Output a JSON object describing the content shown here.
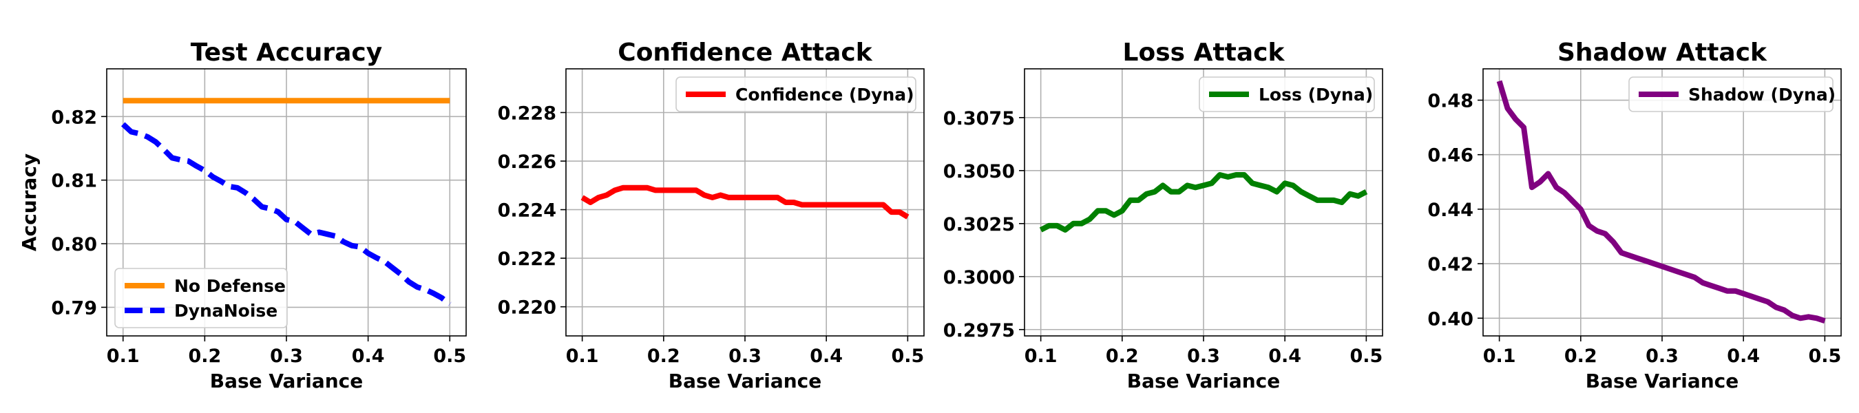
{
  "chart_data": [
    {
      "type": "line",
      "title": "Test Accuracy",
      "xlabel": "Base Variance",
      "ylabel": "Accuracy",
      "xlim": [
        0.08,
        0.52
      ],
      "ylim": [
        0.7855,
        0.8275
      ],
      "xticks": [
        0.1,
        0.2,
        0.3,
        0.4,
        0.5
      ],
      "xtick_labels": [
        "0.1",
        "0.2",
        "0.3",
        "0.4",
        "0.5"
      ],
      "yticks": [
        0.79,
        0.8,
        0.81,
        0.82
      ],
      "ytick_labels": [
        "0.79",
        "0.80",
        "0.81",
        "0.82"
      ],
      "grid": true,
      "legend_position": "lower-left",
      "x": [
        0.1,
        0.11,
        0.12,
        0.13,
        0.14,
        0.15,
        0.16,
        0.17,
        0.18,
        0.19,
        0.2,
        0.21,
        0.22,
        0.23,
        0.24,
        0.25,
        0.26,
        0.27,
        0.28,
        0.29,
        0.3,
        0.31,
        0.32,
        0.33,
        0.34,
        0.35,
        0.36,
        0.37,
        0.38,
        0.39,
        0.4,
        0.41,
        0.42,
        0.43,
        0.44,
        0.45,
        0.46,
        0.47,
        0.48,
        0.49,
        0.5
      ],
      "series": [
        {
          "name": "No Defense",
          "color": "#ff8c00",
          "dash": "solid",
          "values": [
            0.8225,
            0.8225,
            0.8225,
            0.8225,
            0.8225,
            0.8225,
            0.8225,
            0.8225,
            0.8225,
            0.8225,
            0.8225,
            0.8225,
            0.8225,
            0.8225,
            0.8225,
            0.8225,
            0.8225,
            0.8225,
            0.8225,
            0.8225,
            0.8225,
            0.8225,
            0.8225,
            0.8225,
            0.8225,
            0.8225,
            0.8225,
            0.8225,
            0.8225,
            0.8225,
            0.8225,
            0.8225,
            0.8225,
            0.8225,
            0.8225,
            0.8225,
            0.8225,
            0.8225,
            0.8225,
            0.8225,
            0.8225
          ]
        },
        {
          "name": "DynaNoise",
          "color": "#0000ff",
          "dash": "dashed",
          "values": [
            0.8188,
            0.8176,
            0.8173,
            0.8168,
            0.816,
            0.8148,
            0.8135,
            0.8132,
            0.813,
            0.8122,
            0.8115,
            0.8105,
            0.8098,
            0.809,
            0.8088,
            0.808,
            0.807,
            0.8058,
            0.8055,
            0.805,
            0.8038,
            0.8035,
            0.8025,
            0.8015,
            0.8018,
            0.8015,
            0.8012,
            0.8003,
            0.7997,
            0.7995,
            0.7985,
            0.7978,
            0.7972,
            0.7962,
            0.7952,
            0.794,
            0.7932,
            0.7928,
            0.7922,
            0.7915,
            0.7905
          ]
        }
      ]
    },
    {
      "type": "line",
      "title": "Confidence Attack",
      "xlabel": "Base Variance",
      "ylabel": "",
      "xlim": [
        0.08,
        0.52
      ],
      "ylim": [
        0.2188,
        0.2298
      ],
      "xticks": [
        0.1,
        0.2,
        0.3,
        0.4,
        0.5
      ],
      "xtick_labels": [
        "0.1",
        "0.2",
        "0.3",
        "0.4",
        "0.5"
      ],
      "yticks": [
        0.22,
        0.222,
        0.224,
        0.226,
        0.228
      ],
      "ytick_labels": [
        "0.220",
        "0.222",
        "0.224",
        "0.226",
        "0.228"
      ],
      "grid": true,
      "legend_position": "top-right",
      "x": [
        0.1,
        0.11,
        0.12,
        0.13,
        0.14,
        0.15,
        0.16,
        0.17,
        0.18,
        0.19,
        0.2,
        0.21,
        0.22,
        0.23,
        0.24,
        0.25,
        0.26,
        0.27,
        0.28,
        0.29,
        0.3,
        0.31,
        0.32,
        0.33,
        0.34,
        0.35,
        0.36,
        0.37,
        0.38,
        0.39,
        0.4,
        0.41,
        0.42,
        0.43,
        0.44,
        0.45,
        0.46,
        0.47,
        0.48,
        0.49,
        0.5
      ],
      "series": [
        {
          "name": "Confidence (Dyna)",
          "color": "#ff0000",
          "dash": "solid",
          "values": [
            0.2245,
            0.2243,
            0.2245,
            0.2246,
            0.2248,
            0.2249,
            0.2249,
            0.2249,
            0.2249,
            0.2248,
            0.2248,
            0.2248,
            0.2248,
            0.2248,
            0.2248,
            0.2246,
            0.2245,
            0.2246,
            0.2245,
            0.2245,
            0.2245,
            0.2245,
            0.2245,
            0.2245,
            0.2245,
            0.2243,
            0.2243,
            0.2242,
            0.2242,
            0.2242,
            0.2242,
            0.2242,
            0.2242,
            0.2242,
            0.2242,
            0.2242,
            0.2242,
            0.2242,
            0.2239,
            0.2239,
            0.2237
          ]
        }
      ]
    },
    {
      "type": "line",
      "title": "Loss Attack",
      "xlabel": "Base Variance",
      "ylabel": "",
      "xlim": [
        0.08,
        0.52
      ],
      "ylim": [
        0.2972,
        0.3098
      ],
      "xticks": [
        0.1,
        0.2,
        0.3,
        0.4,
        0.5
      ],
      "xtick_labels": [
        "0.1",
        "0.2",
        "0.3",
        "0.4",
        "0.5"
      ],
      "yticks": [
        0.2975,
        0.3,
        0.3025,
        0.305,
        0.3075
      ],
      "ytick_labels": [
        "0.2975",
        "0.3000",
        "0.3025",
        "0.3050",
        "0.3075"
      ],
      "grid": true,
      "legend_position": "top-right",
      "x": [
        0.1,
        0.11,
        0.12,
        0.13,
        0.14,
        0.15,
        0.16,
        0.17,
        0.18,
        0.19,
        0.2,
        0.21,
        0.22,
        0.23,
        0.24,
        0.25,
        0.26,
        0.27,
        0.28,
        0.29,
        0.3,
        0.31,
        0.32,
        0.33,
        0.34,
        0.35,
        0.36,
        0.37,
        0.38,
        0.39,
        0.4,
        0.41,
        0.42,
        0.43,
        0.44,
        0.45,
        0.46,
        0.47,
        0.48,
        0.49,
        0.5
      ],
      "series": [
        {
          "name": "Loss (Dyna)",
          "color": "#008000",
          "dash": "solid",
          "values": [
            0.3022,
            0.3024,
            0.3024,
            0.3022,
            0.3025,
            0.3025,
            0.3027,
            0.3031,
            0.3031,
            0.3029,
            0.3031,
            0.3036,
            0.3036,
            0.3039,
            0.304,
            0.3043,
            0.304,
            0.304,
            0.3043,
            0.3042,
            0.3043,
            0.3044,
            0.3048,
            0.3047,
            0.3048,
            0.3048,
            0.3044,
            0.3043,
            0.3042,
            0.304,
            0.3044,
            0.3043,
            0.304,
            0.3038,
            0.3036,
            0.3036,
            0.3036,
            0.3035,
            0.3039,
            0.3038,
            0.304
          ]
        }
      ]
    },
    {
      "type": "line",
      "title": "Shadow Attack",
      "xlabel": "Base Variance",
      "ylabel": "",
      "xlim": [
        0.08,
        0.52
      ],
      "ylim": [
        0.3935,
        0.4915
      ],
      "xticks": [
        0.1,
        0.2,
        0.3,
        0.4,
        0.5
      ],
      "xtick_labels": [
        "0.1",
        "0.2",
        "0.3",
        "0.4",
        "0.5"
      ],
      "yticks": [
        0.4,
        0.42,
        0.44,
        0.46,
        0.48
      ],
      "ytick_labels": [
        "0.40",
        "0.42",
        "0.44",
        "0.46",
        "0.48"
      ],
      "grid": true,
      "legend_position": "top-right",
      "x": [
        0.1,
        0.11,
        0.12,
        0.13,
        0.14,
        0.15,
        0.16,
        0.17,
        0.18,
        0.19,
        0.2,
        0.21,
        0.22,
        0.23,
        0.24,
        0.25,
        0.26,
        0.27,
        0.28,
        0.29,
        0.3,
        0.31,
        0.32,
        0.33,
        0.34,
        0.35,
        0.36,
        0.37,
        0.38,
        0.39,
        0.4,
        0.41,
        0.42,
        0.43,
        0.44,
        0.45,
        0.46,
        0.47,
        0.48,
        0.49,
        0.5
      ],
      "series": [
        {
          "name": "Shadow (Dyna)",
          "color": "#800080",
          "dash": "solid",
          "values": [
            0.487,
            0.477,
            0.473,
            0.47,
            0.448,
            0.45,
            0.453,
            0.448,
            0.446,
            0.443,
            0.44,
            0.434,
            0.432,
            0.431,
            0.428,
            0.424,
            0.423,
            0.422,
            0.421,
            0.42,
            0.419,
            0.418,
            0.417,
            0.416,
            0.415,
            0.413,
            0.412,
            0.411,
            0.41,
            0.41,
            0.409,
            0.408,
            0.407,
            0.406,
            0.404,
            0.403,
            0.401,
            0.4,
            0.4005,
            0.4,
            0.399
          ]
        }
      ]
    }
  ]
}
